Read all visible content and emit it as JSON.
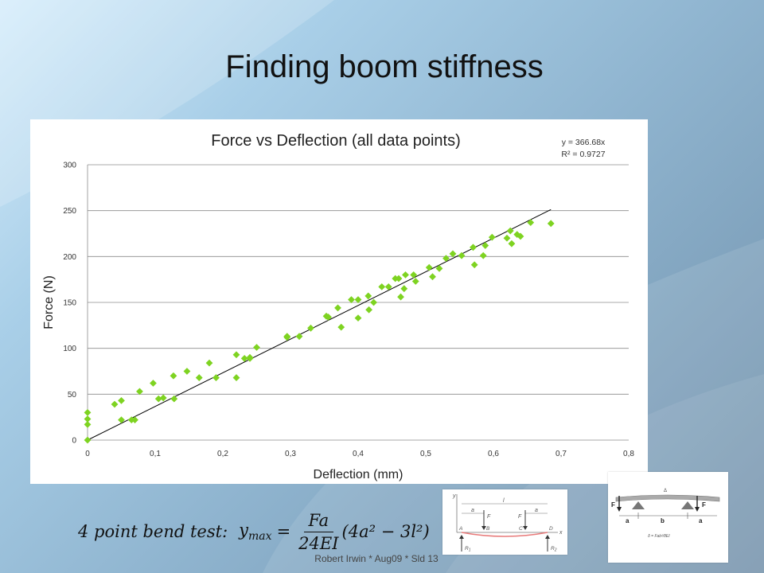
{
  "slide": {
    "title": "Finding boom stiffness",
    "footer": "Robert Irwin * Aug09 * Sld 13",
    "formula": {
      "label": "4 point bend test:",
      "lhs": "y",
      "lhs_sub": "max",
      "equals": "=",
      "numerator": "Fa",
      "denominator": "24EI",
      "tail": "(4a² − 3l²)"
    },
    "diagram_left_labels": {
      "y": "y",
      "x": "x",
      "l": "l",
      "a_left": "a",
      "a_right": "a",
      "F_left": "F",
      "F_right": "F",
      "A": "A",
      "B": "B",
      "C": "C",
      "D": "D",
      "R1": "R",
      "R1_sub": "1",
      "R2": "R",
      "R2_sub": "2"
    },
    "diagram_right_labels": {
      "F_left": "F",
      "F_right": "F",
      "a_left": "a",
      "b": "b",
      "a_right": "a",
      "delta": "Δ",
      "delta_formula": "δ = Fab²/8EI"
    },
    "colors": {
      "marker": "#7ed321",
      "trendline": "#000000",
      "gridline": "#8c8c8c"
    }
  },
  "chart_data": {
    "type": "scatter",
    "title": "Force vs Deflection (all data points)",
    "xlabel": "Deflection (mm)",
    "ylabel": "Force (N)",
    "xlim": [
      0,
      0.8
    ],
    "ylim": [
      0,
      300
    ],
    "x_ticks": [
      "0",
      "0,1",
      "0,2",
      "0,3",
      "0,4",
      "0,5",
      "0,6",
      "0,7",
      "0,8"
    ],
    "y_ticks": [
      "0",
      "50",
      "100",
      "150",
      "200",
      "250",
      "300"
    ],
    "grid": "horizontal",
    "legend": "none",
    "trendline": {
      "equation_label": "y = 366.68x",
      "r2_label": "R² = 0.9727",
      "slope": 366.68,
      "x_range": [
        0,
        0.685
      ]
    },
    "x": [
      0,
      0,
      0,
      0,
      0.04,
      0.05,
      0.05,
      0.065,
      0.07,
      0.077,
      0.097,
      0.105,
      0.112,
      0.127,
      0.128,
      0.147,
      0.165,
      0.18,
      0.19,
      0.22,
      0.22,
      0.232,
      0.24,
      0.24,
      0.25,
      0.295,
      0.295,
      0.313,
      0.33,
      0.353,
      0.356,
      0.37,
      0.375,
      0.39,
      0.4,
      0.4,
      0.415,
      0.416,
      0.423,
      0.435,
      0.445,
      0.455,
      0.46,
      0.463,
      0.468,
      0.47,
      0.482,
      0.485,
      0.505,
      0.51,
      0.52,
      0.53,
      0.54,
      0.553,
      0.57,
      0.572,
      0.585,
      0.588,
      0.598,
      0.62,
      0.625,
      0.627,
      0.635,
      0.64,
      0.655,
      0.685
    ],
    "y": [
      0,
      17,
      23,
      30,
      39,
      43,
      22,
      22,
      22,
      53,
      62,
      45,
      46,
      70,
      45,
      75,
      68,
      84,
      68,
      93,
      68,
      89,
      89,
      90,
      101,
      113,
      112,
      113,
      122,
      135,
      134,
      144,
      123,
      153,
      153,
      133,
      157,
      142,
      150,
      167,
      167,
      176,
      176,
      156,
      165,
      180,
      180,
      173,
      188,
      178,
      187,
      198,
      203,
      201,
      210,
      191,
      201,
      212,
      221,
      220,
      228,
      214,
      224,
      222,
      237,
      236
    ]
  }
}
